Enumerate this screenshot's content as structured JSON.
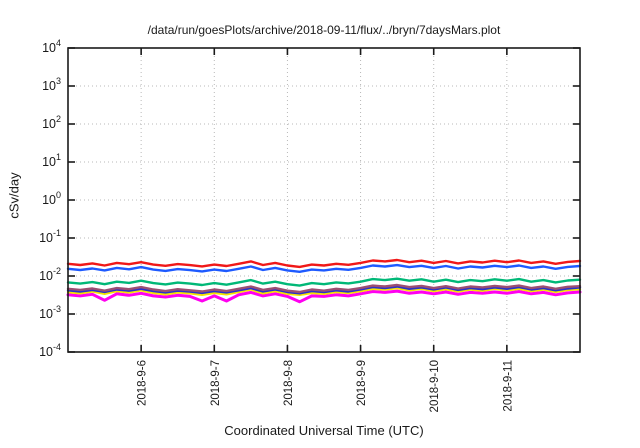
{
  "page": {
    "background": "#ffffff"
  },
  "chart_data": {
    "type": "line",
    "title": "/data/run/goesPlots/archive/2018-09-11/flux/../bryn/7daysMars.plot",
    "xlabel": "Coordinated Universal Time (UTC)",
    "ylabel": "cSv/day",
    "legend": "none",
    "grid": true,
    "grid_color": "#b8b8b8",
    "axis_color": "#1a1a1a",
    "y_scale": "log",
    "ylim": [
      0.0001,
      10000
    ],
    "y_tick_exponents": [
      4,
      3,
      2,
      1,
      0,
      -1,
      -2,
      -3,
      -4
    ],
    "x_range": [
      0,
      168
    ],
    "x_tick_hours": [
      24,
      48,
      72,
      96,
      120,
      144
    ],
    "x_tick_labels": [
      "2018-9-6",
      "2018-9-7",
      "2018-9-8",
      "2018-9-9",
      "2018-9-10",
      "2018-9-11"
    ],
    "x_hours": [
      0,
      4,
      8,
      12,
      16,
      20,
      24,
      28,
      32,
      36,
      40,
      44,
      48,
      52,
      56,
      60,
      64,
      68,
      72,
      76,
      80,
      84,
      88,
      92,
      96,
      100,
      104,
      108,
      112,
      116,
      120,
      124,
      128,
      132,
      136,
      140,
      144,
      148,
      152,
      156,
      160,
      164,
      168
    ],
    "series": [
      {
        "name": "magenta",
        "color": "#ff00f0",
        "width": 3,
        "values": [
          0.0032,
          0.003,
          0.0033,
          0.0023,
          0.0034,
          0.0031,
          0.0035,
          0.003,
          0.0028,
          0.0031,
          0.0029,
          0.0022,
          0.003,
          0.0022,
          0.0032,
          0.0037,
          0.003,
          0.0034,
          0.0029,
          0.0021,
          0.003,
          0.0029,
          0.0032,
          0.003,
          0.0034,
          0.0039,
          0.0037,
          0.004,
          0.0035,
          0.0038,
          0.0034,
          0.0038,
          0.0033,
          0.0037,
          0.0035,
          0.0038,
          0.0035,
          0.0039,
          0.0034,
          0.0037,
          0.0032,
          0.0036,
          0.0038
        ]
      },
      {
        "name": "yellow",
        "color": "#f6e400",
        "width": 2.4,
        "values": [
          0.0038,
          0.0035,
          0.0039,
          0.0034,
          0.004,
          0.0037,
          0.0042,
          0.0036,
          0.0033,
          0.0037,
          0.0035,
          0.0032,
          0.0036,
          0.0033,
          0.0038,
          0.0044,
          0.0035,
          0.004,
          0.0034,
          0.0032,
          0.0036,
          0.0034,
          0.0038,
          0.0036,
          0.004,
          0.0046,
          0.0044,
          0.0048,
          0.0042,
          0.0046,
          0.004,
          0.0045,
          0.0039,
          0.0044,
          0.0041,
          0.0046,
          0.0042,
          0.0046,
          0.004,
          0.0044,
          0.0038,
          0.0043,
          0.0045
        ]
      },
      {
        "name": "navy",
        "color": "#2632cc",
        "width": 2.4,
        "values": [
          0.0042,
          0.0039,
          0.0043,
          0.0038,
          0.0044,
          0.0041,
          0.0046,
          0.004,
          0.0037,
          0.0041,
          0.0039,
          0.0036,
          0.004,
          0.0037,
          0.0042,
          0.0048,
          0.0039,
          0.0044,
          0.0038,
          0.0035,
          0.004,
          0.0038,
          0.0042,
          0.0039,
          0.0044,
          0.0051,
          0.0048,
          0.0053,
          0.0046,
          0.005,
          0.0044,
          0.005,
          0.0043,
          0.0048,
          0.0045,
          0.005,
          0.0046,
          0.0051,
          0.0044,
          0.0048,
          0.0042,
          0.0047,
          0.005
        ]
      },
      {
        "name": "purple",
        "color": "#9b4f72",
        "width": 2.4,
        "values": [
          0.0046,
          0.0043,
          0.0047,
          0.0041,
          0.0048,
          0.0045,
          0.0051,
          0.0044,
          0.004,
          0.0045,
          0.0042,
          0.0039,
          0.0044,
          0.004,
          0.0046,
          0.0053,
          0.0043,
          0.0048,
          0.0041,
          0.0038,
          0.0044,
          0.0041,
          0.0046,
          0.0043,
          0.0048,
          0.0056,
          0.0053,
          0.0058,
          0.0051,
          0.0055,
          0.0048,
          0.0054,
          0.0047,
          0.0053,
          0.005,
          0.0055,
          0.0051,
          0.0056,
          0.0048,
          0.0053,
          0.0046,
          0.0052,
          0.0054
        ]
      },
      {
        "name": "green",
        "color": "#00b877",
        "width": 2.4,
        "values": [
          0.0068,
          0.0063,
          0.0069,
          0.0061,
          0.0071,
          0.0066,
          0.0075,
          0.0065,
          0.006,
          0.0067,
          0.0063,
          0.0058,
          0.0065,
          0.0059,
          0.0068,
          0.0078,
          0.0063,
          0.0071,
          0.0061,
          0.0056,
          0.0065,
          0.0061,
          0.0068,
          0.0064,
          0.0071,
          0.0083,
          0.0078,
          0.0085,
          0.0075,
          0.0082,
          0.0071,
          0.008,
          0.0069,
          0.0078,
          0.0073,
          0.0082,
          0.0075,
          0.0083,
          0.0071,
          0.0078,
          0.0068,
          0.0076,
          0.008
        ]
      },
      {
        "name": "blue",
        "color": "#1e5aff",
        "width": 2.4,
        "values": [
          0.0155,
          0.0144,
          0.0158,
          0.014,
          0.0163,
          0.015,
          0.0171,
          0.0147,
          0.0136,
          0.0152,
          0.0143,
          0.0132,
          0.0147,
          0.0135,
          0.0155,
          0.0178,
          0.0144,
          0.0163,
          0.014,
          0.0129,
          0.0147,
          0.014,
          0.0155,
          0.0146,
          0.0163,
          0.0189,
          0.0178,
          0.0194,
          0.0171,
          0.0186,
          0.0163,
          0.0183,
          0.0158,
          0.0178,
          0.0167,
          0.0186,
          0.0171,
          0.0189,
          0.0163,
          0.0178,
          0.0155,
          0.0174,
          0.0183
        ]
      },
      {
        "name": "red",
        "color": "#f01818",
        "width": 2.4,
        "values": [
          0.021,
          0.0195,
          0.0214,
          0.0189,
          0.0221,
          0.0204,
          0.0231,
          0.02,
          0.0185,
          0.0206,
          0.0193,
          0.0179,
          0.02,
          0.0183,
          0.021,
          0.0242,
          0.0195,
          0.0221,
          0.0189,
          0.0174,
          0.02,
          0.0189,
          0.021,
          0.0197,
          0.0221,
          0.0256,
          0.0242,
          0.0263,
          0.0231,
          0.0252,
          0.0221,
          0.0248,
          0.0214,
          0.0242,
          0.0227,
          0.0252,
          0.0231,
          0.0256,
          0.0221,
          0.0242,
          0.021,
          0.0235,
          0.0248
        ]
      }
    ]
  }
}
